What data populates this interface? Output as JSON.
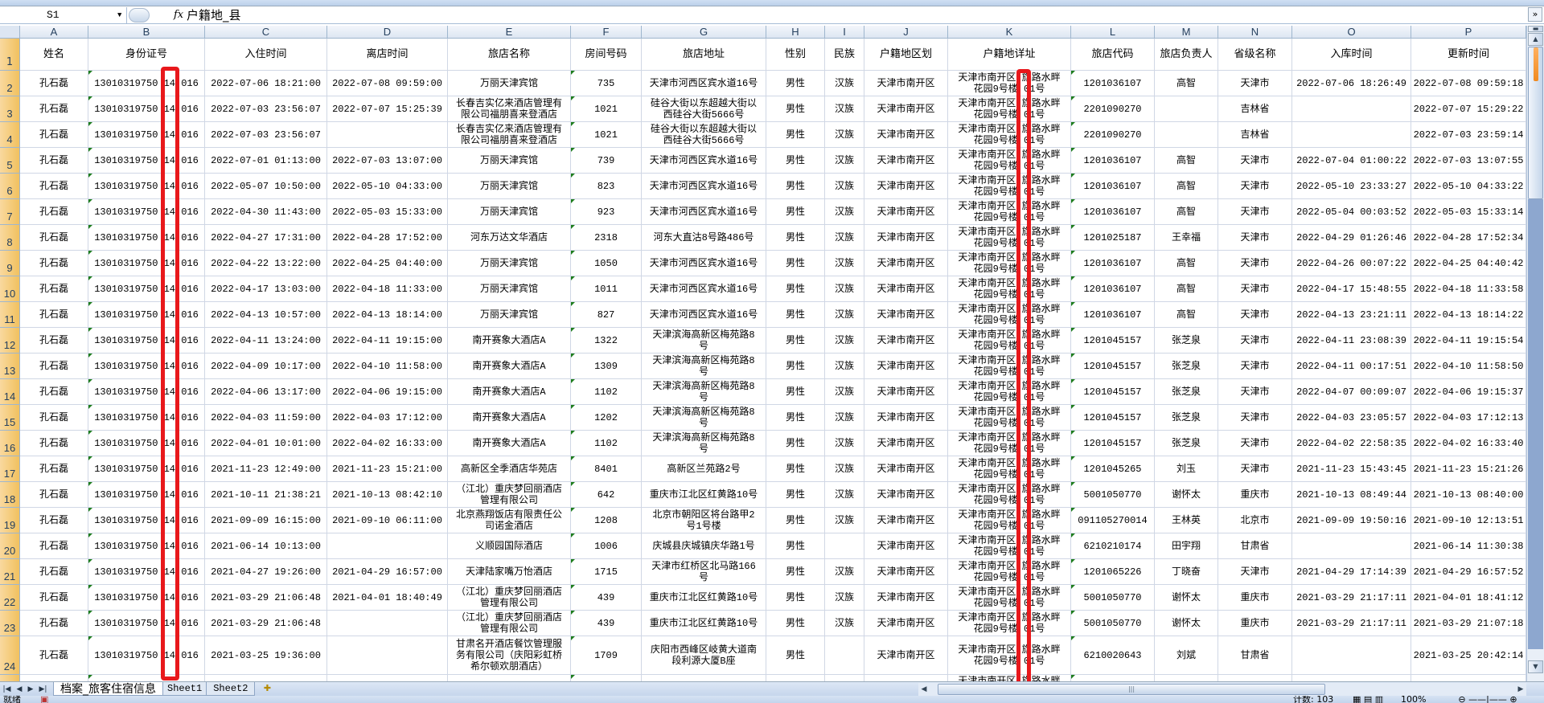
{
  "formula_bar": {
    "name_box": "S1",
    "fx_label": "fx",
    "content": "户籍地_县"
  },
  "columns": [
    "A",
    "B",
    "C",
    "D",
    "E",
    "F",
    "G",
    "H",
    "I",
    "J",
    "K",
    "L",
    "M",
    "N",
    "O",
    "P"
  ],
  "header_row": {
    "row_number": "1",
    "cells": [
      "姓名",
      "身份证号",
      "入住时间",
      "离店时间",
      "旅店名称",
      "房间号码",
      "旅店地址",
      "性别",
      "民族",
      "户籍地区划",
      "户籍地详址",
      "旅店代码",
      "旅店负责人",
      "省级名称",
      "入库时间",
      "更新时间"
    ]
  },
  "rows": [
    {
      "n": "2",
      "cells": [
        "孔石磊",
        "13010319750 14 016",
        "2022-07-06 18:21:00",
        "2022-07-08 09:59:00",
        "万丽天津宾馆",
        "735",
        "天津市河西区宾水道16号",
        "男性",
        "汉族",
        "天津市南开区",
        "天津市南开区 旗路水畔花园9号楼 01号",
        "1201036107",
        "高智",
        "天津市",
        "2022-07-06 18:26:49",
        "2022-07-08 09:59:18"
      ]
    },
    {
      "n": "3",
      "cells": [
        "孔石磊",
        "13010319750 14 016",
        "2022-07-03 23:56:07",
        "2022-07-07 15:25:39",
        "长春吉实亿来酒店管理有限公司福朋喜来登酒店",
        "1021",
        "硅谷大街以东超越大街以西硅谷大街5666号",
        "男性",
        "汉族",
        "天津市南开区",
        "天津市南开区 旗路水畔花园9号楼 01号",
        "2201090270",
        "",
        "吉林省",
        "",
        "2022-07-07 15:29:22"
      ]
    },
    {
      "n": "4",
      "cells": [
        "孔石磊",
        "13010319750 14 016",
        "2022-07-03 23:56:07",
        "",
        "长春吉实亿来酒店管理有限公司福朋喜来登酒店",
        "1021",
        "硅谷大街以东超越大街以西硅谷大街5666号",
        "男性",
        "汉族",
        "天津市南开区",
        "天津市南开区 旗路水畔花园9号楼 01号",
        "2201090270",
        "",
        "吉林省",
        "",
        "2022-07-03 23:59:14"
      ]
    },
    {
      "n": "5",
      "cells": [
        "孔石磊",
        "13010319750 14 016",
        "2022-07-01 01:13:00",
        "2022-07-03 13:07:00",
        "万丽天津宾馆",
        "739",
        "天津市河西区宾水道16号",
        "男性",
        "汉族",
        "天津市南开区",
        "天津市南开区 旗路水畔花园9号楼 01号",
        "1201036107",
        "高智",
        "天津市",
        "2022-07-04 01:00:22",
        "2022-07-03 13:07:55"
      ]
    },
    {
      "n": "6",
      "cells": [
        "孔石磊",
        "13010319750 14 016",
        "2022-05-07 10:50:00",
        "2022-05-10 04:33:00",
        "万丽天津宾馆",
        "823",
        "天津市河西区宾水道16号",
        "男性",
        "汉族",
        "天津市南开区",
        "天津市南开区 旗路水畔花园9号楼 01号",
        "1201036107",
        "高智",
        "天津市",
        "2022-05-10 23:33:27",
        "2022-05-10 04:33:22"
      ]
    },
    {
      "n": "7",
      "cells": [
        "孔石磊",
        "13010319750 14 016",
        "2022-04-30 11:43:00",
        "2022-05-03 15:33:00",
        "万丽天津宾馆",
        "923",
        "天津市河西区宾水道16号",
        "男性",
        "汉族",
        "天津市南开区",
        "天津市南开区 旗路水畔花园9号楼 01号",
        "1201036107",
        "高智",
        "天津市",
        "2022-05-04 00:03:52",
        "2022-05-03 15:33:14"
      ]
    },
    {
      "n": "8",
      "cells": [
        "孔石磊",
        "13010319750 14 016",
        "2022-04-27 17:31:00",
        "2022-04-28 17:52:00",
        "河东万达文华酒店",
        "2318",
        "河东大直沽8号路486号",
        "男性",
        "汉族",
        "天津市南开区",
        "天津市南开区 旗路水畔花园9号楼 01号",
        "1201025187",
        "王幸福",
        "天津市",
        "2022-04-29 01:26:46",
        "2022-04-28 17:52:34"
      ]
    },
    {
      "n": "9",
      "cells": [
        "孔石磊",
        "13010319750 14 016",
        "2022-04-22 13:22:00",
        "2022-04-25 04:40:00",
        "万丽天津宾馆",
        "1050",
        "天津市河西区宾水道16号",
        "男性",
        "汉族",
        "天津市南开区",
        "天津市南开区 旗路水畔花园9号楼 01号",
        "1201036107",
        "高智",
        "天津市",
        "2022-04-26 00:07:22",
        "2022-04-25 04:40:42"
      ]
    },
    {
      "n": "10",
      "cells": [
        "孔石磊",
        "13010319750 14 016",
        "2022-04-17 13:03:00",
        "2022-04-18 11:33:00",
        "万丽天津宾馆",
        "1011",
        "天津市河西区宾水道16号",
        "男性",
        "汉族",
        "天津市南开区",
        "天津市南开区 旗路水畔花园9号楼 01号",
        "1201036107",
        "高智",
        "天津市",
        "2022-04-17 15:48:55",
        "2022-04-18 11:33:58"
      ]
    },
    {
      "n": "11",
      "cells": [
        "孔石磊",
        "13010319750 14 016",
        "2022-04-13 10:57:00",
        "2022-04-13 18:14:00",
        "万丽天津宾馆",
        "827",
        "天津市河西区宾水道16号",
        "男性",
        "汉族",
        "天津市南开区",
        "天津市南开区 旗路水畔花园9号楼 01号",
        "1201036107",
        "高智",
        "天津市",
        "2022-04-13 23:21:11",
        "2022-04-13 18:14:22"
      ]
    },
    {
      "n": "12",
      "cells": [
        "孔石磊",
        "13010319750 14 016",
        "2022-04-11 13:24:00",
        "2022-04-11 19:15:00",
        "南开赛象大酒店A",
        "1322",
        "天津滨海高新区梅苑路8号",
        "男性",
        "汉族",
        "天津市南开区",
        "天津市南开区 旗路水畔花园9号楼 01号",
        "1201045157",
        "张芝泉",
        "天津市",
        "2022-04-11 23:08:39",
        "2022-04-11 19:15:54"
      ]
    },
    {
      "n": "13",
      "cells": [
        "孔石磊",
        "13010319750 14 016",
        "2022-04-09 10:17:00",
        "2022-04-10 11:58:00",
        "南开赛象大酒店A",
        "1309",
        "天津滨海高新区梅苑路8号",
        "男性",
        "汉族",
        "天津市南开区",
        "天津市南开区 旗路水畔花园9号楼 01号",
        "1201045157",
        "张芝泉",
        "天津市",
        "2022-04-11 00:17:51",
        "2022-04-10 11:58:50"
      ]
    },
    {
      "n": "14",
      "cells": [
        "孔石磊",
        "13010319750 14 016",
        "2022-04-06 13:17:00",
        "2022-04-06 19:15:00",
        "南开赛象大酒店A",
        "1102",
        "天津滨海高新区梅苑路8号",
        "男性",
        "汉族",
        "天津市南开区",
        "天津市南开区 旗路水畔花园9号楼 01号",
        "1201045157",
        "张芝泉",
        "天津市",
        "2022-04-07 00:09:07",
        "2022-04-06 19:15:37"
      ]
    },
    {
      "n": "15",
      "cells": [
        "孔石磊",
        "13010319750 14 016",
        "2022-04-03 11:59:00",
        "2022-04-03 17:12:00",
        "南开赛象大酒店A",
        "1202",
        "天津滨海高新区梅苑路8号",
        "男性",
        "汉族",
        "天津市南开区",
        "天津市南开区 旗路水畔花园9号楼 01号",
        "1201045157",
        "张芝泉",
        "天津市",
        "2022-04-03 23:05:57",
        "2022-04-03 17:12:13"
      ]
    },
    {
      "n": "16",
      "cells": [
        "孔石磊",
        "13010319750 14 016",
        "2022-04-01 10:01:00",
        "2022-04-02 16:33:00",
        "南开赛象大酒店A",
        "1102",
        "天津滨海高新区梅苑路8号",
        "男性",
        "汉族",
        "天津市南开区",
        "天津市南开区 旗路水畔花园9号楼 01号",
        "1201045157",
        "张芝泉",
        "天津市",
        "2022-04-02 22:58:35",
        "2022-04-02 16:33:40"
      ]
    },
    {
      "n": "17",
      "cells": [
        "孔石磊",
        "13010319750 14 016",
        "2021-11-23 12:49:00",
        "2021-11-23 15:21:00",
        "高新区全季酒店华苑店",
        "8401",
        "高新区兰苑路2号",
        "男性",
        "汉族",
        "天津市南开区",
        "天津市南开区 旗路水畔花园9号楼 01号",
        "1201045265",
        "刘玉",
        "天津市",
        "2021-11-23 15:43:45",
        "2021-11-23 15:21:26"
      ]
    },
    {
      "n": "18",
      "cells": [
        "孔石磊",
        "13010319750 14 016",
        "2021-10-11 21:38:21",
        "2021-10-13 08:42:10",
        "（江北）重庆梦回丽酒店管理有限公司",
        "642",
        "重庆市江北区红黄路10号",
        "男性",
        "汉族",
        "天津市南开区",
        "天津市南开区 旗路水畔花园9号楼 01号",
        "5001050770",
        "谢怀太",
        "重庆市",
        "2021-10-13 08:49:44",
        "2021-10-13 08:40:00"
      ]
    },
    {
      "n": "19",
      "cells": [
        "孔石磊",
        "13010319750 14 016",
        "2021-09-09 16:15:00",
        "2021-09-10 06:11:00",
        "北京燕翔饭店有限责任公司诺金酒店",
        "1208",
        "北京市朝阳区将台路甲2号1号楼",
        "男性",
        "汉族",
        "天津市南开区",
        "天津市南开区 旗路水畔花园9号楼 01号",
        "091105270014",
        "王林英",
        "北京市",
        "2021-09-09 19:50:16",
        "2021-09-10 12:13:51"
      ]
    },
    {
      "n": "20",
      "cells": [
        "孔石磊",
        "13010319750 14 016",
        "2021-06-14 10:13:00",
        "",
        "义顺园国际酒店",
        "1006",
        "庆城县庆城镇庆华路1号",
        "男性",
        "",
        "天津市南开区",
        "天津市南开区 旗路水畔花园9号楼 01号",
        "6210210174",
        "田宇翔",
        "甘肃省",
        "",
        "2021-06-14 11:30:38"
      ]
    },
    {
      "n": "21",
      "cells": [
        "孔石磊",
        "13010319750 14 016",
        "2021-04-27 19:26:00",
        "2021-04-29 16:57:00",
        "天津陆家嘴万怡酒店",
        "1715",
        "天津市红桥区北马路166号",
        "男性",
        "汉族",
        "天津市南开区",
        "天津市南开区 旗路水畔花园9号楼 01号",
        "1201065226",
        "丁晓奋",
        "天津市",
        "2021-04-29 17:14:39",
        "2021-04-29 16:57:52"
      ]
    },
    {
      "n": "22",
      "cells": [
        "孔石磊",
        "13010319750 14 016",
        "2021-03-29 21:06:48",
        "2021-04-01 18:40:49",
        "（江北）重庆梦回丽酒店管理有限公司",
        "439",
        "重庆市江北区红黄路10号",
        "男性",
        "汉族",
        "天津市南开区",
        "天津市南开区 旗路水畔花园9号楼 01号",
        "5001050770",
        "谢怀太",
        "重庆市",
        "2021-03-29 21:17:11",
        "2021-04-01 18:41:12"
      ]
    },
    {
      "n": "23",
      "cells": [
        "孔石磊",
        "13010319750 14 016",
        "2021-03-29 21:06:48",
        "",
        "（江北）重庆梦回丽酒店管理有限公司",
        "439",
        "重庆市江北区红黄路10号",
        "男性",
        "汉族",
        "天津市南开区",
        "天津市南开区 旗路水畔花园9号楼 01号",
        "5001050770",
        "谢怀太",
        "重庆市",
        "2021-03-29 21:17:11",
        "2021-03-29 21:07:18"
      ]
    },
    {
      "n": "24",
      "cells": [
        "孔石磊",
        "13010319750 14 016",
        "2021-03-25 19:36:00",
        "",
        "甘肃名开酒店餐饮管理服务有限公司（庆阳彩虹桥希尔顿欢朋酒店）",
        "1709",
        "庆阳市西峰区岐黄大道南段利源大厦B座",
        "男性",
        "",
        "天津市南开区",
        "天津市南开区 旗路水畔花园9号楼 01号",
        "6210020643",
        "刘斌",
        "甘肃省",
        "",
        "2021-03-25 20:42:14"
      ]
    }
  ],
  "partial_row": {
    "k_text": "天津市南开区 旗路水畔"
  },
  "sheet_tabs": [
    {
      "label": "档案_旅客住宿信息",
      "active": true
    },
    {
      "label": "Sheet1"
    },
    {
      "label": "Sheet2"
    }
  ],
  "status_bar": {
    "ready": "就绪",
    "count": "计数: 103",
    "zoom": "100%"
  },
  "colors": {
    "highlight_box": "#e8181c",
    "row_header": "#f9d99f",
    "grid_line": "#d0d7e5",
    "text_number_marker": "#1e7d1e"
  },
  "icons": [
    "dropdown-arrow-icon",
    "fx-icon",
    "expand-formula-bar-icon",
    "sheet-nav-icons",
    "insert-sheet-icon",
    "scroll-arrow-icons",
    "macro-record-icon",
    "view-mode-icons",
    "zoom-slider"
  ]
}
